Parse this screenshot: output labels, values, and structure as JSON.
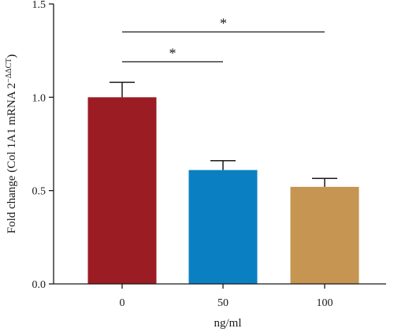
{
  "chart_data": {
    "type": "bar",
    "categories": [
      "0",
      "50",
      "100"
    ],
    "values": [
      1.0,
      0.61,
      0.52
    ],
    "errors": [
      0.08,
      0.05,
      0.045
    ],
    "colors": [
      "#9B1C22",
      "#0A80C2",
      "#C69552"
    ],
    "xlabel": "ng/ml",
    "ylabel": "Fold change (Col 1A1 mRNA 2",
    "ylabel_sup": "−ΔΔCT",
    "ylabel_end": ")",
    "ylim": [
      0,
      1.5
    ],
    "yticks": [
      "0.0",
      "0.5",
      "1.0",
      "1.5"
    ],
    "grid": false,
    "significance": [
      {
        "from": 0,
        "to": 1,
        "label": "*",
        "y": 1.19
      },
      {
        "from": 0,
        "to": 2,
        "label": "*",
        "y": 1.35
      }
    ]
  }
}
